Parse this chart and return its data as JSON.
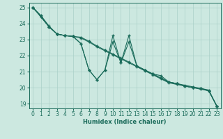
{
  "xlabel": "Humidex (Indice chaleur)",
  "ylabel": "",
  "xlim": [
    -0.5,
    23.5
  ],
  "ylim": [
    18.7,
    25.3
  ],
  "yticks": [
    19,
    20,
    21,
    22,
    23,
    24,
    25
  ],
  "xticks": [
    0,
    1,
    2,
    3,
    4,
    5,
    6,
    7,
    8,
    9,
    10,
    11,
    12,
    13,
    14,
    15,
    16,
    17,
    18,
    19,
    20,
    21,
    22,
    23
  ],
  "bg_color": "#cce8e0",
  "line_color": "#1a6b5a",
  "grid_color": "#aad0c8",
  "lines": [
    {
      "x": [
        0,
        1,
        2,
        3,
        4,
        5,
        6,
        7,
        8,
        9,
        10,
        11,
        12,
        13,
        14,
        15,
        16,
        17,
        18,
        19,
        20,
        21,
        22,
        23
      ],
      "y": [
        25.0,
        24.5,
        23.85,
        23.35,
        23.25,
        23.2,
        23.15,
        22.9,
        22.6,
        22.35,
        22.1,
        21.85,
        21.6,
        21.35,
        21.1,
        20.85,
        20.6,
        20.35,
        20.25,
        20.15,
        20.05,
        19.95,
        19.85,
        18.85
      ]
    },
    {
      "x": [
        0,
        2,
        3,
        4,
        5,
        6,
        7,
        8,
        9,
        10,
        11,
        12,
        13,
        14,
        15,
        16,
        17,
        18,
        19,
        20,
        21,
        22,
        23
      ],
      "y": [
        25.0,
        23.8,
        23.35,
        23.25,
        23.2,
        23.1,
        22.85,
        22.55,
        22.3,
        22.05,
        21.8,
        21.55,
        21.3,
        21.05,
        20.8,
        20.55,
        20.3,
        20.2,
        20.1,
        20.0,
        19.9,
        19.8,
        18.85
      ]
    },
    {
      "x": [
        0,
        1,
        2,
        3,
        4,
        5,
        6,
        7,
        8,
        9,
        10,
        11,
        12,
        13,
        14,
        15,
        16,
        17,
        18,
        19,
        20,
        21,
        22,
        23
      ],
      "y": [
        25.0,
        24.45,
        23.8,
        23.35,
        23.25,
        23.2,
        22.75,
        21.1,
        20.5,
        21.1,
        23.25,
        21.55,
        23.25,
        21.35,
        21.1,
        20.85,
        20.6,
        20.35,
        20.25,
        20.1,
        20.0,
        19.95,
        19.8,
        18.85
      ]
    },
    {
      "x": [
        0,
        1,
        2,
        3,
        4,
        5,
        6,
        7,
        8,
        9,
        10,
        11,
        12,
        13,
        14,
        15,
        16,
        17,
        18,
        19,
        20,
        21,
        22,
        23
      ],
      "y": [
        25.0,
        24.45,
        23.8,
        23.35,
        23.25,
        23.2,
        22.75,
        21.1,
        20.5,
        21.1,
        22.85,
        21.55,
        22.85,
        21.35,
        21.1,
        20.85,
        20.75,
        20.35,
        20.25,
        20.1,
        20.0,
        19.95,
        19.8,
        18.85
      ]
    }
  ]
}
